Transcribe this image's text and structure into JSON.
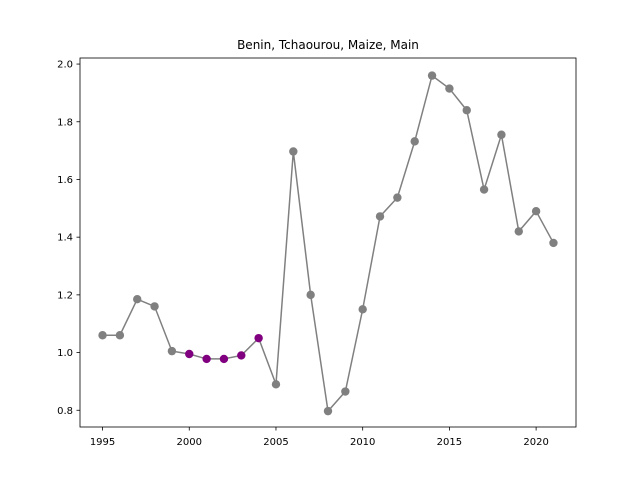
{
  "chart_data": {
    "type": "line",
    "title": "Benin, Tchaourou, Maize, Main",
    "xlabel": "",
    "ylabel": "",
    "xlim": [
      1993.7,
      2022.3
    ],
    "ylim": [
      0.742,
      2.021
    ],
    "x_ticks": [
      1995,
      2000,
      2005,
      2010,
      2015,
      2020
    ],
    "y_ticks": [
      0.8,
      1.0,
      1.2,
      1.4,
      1.6,
      1.8,
      2.0
    ],
    "y_tick_labels": [
      "0.8",
      "1.0",
      "1.2",
      "1.4",
      "1.6",
      "1.8",
      "2.0"
    ],
    "grid": false,
    "line_color": "#808080",
    "highlight_color": "#800080",
    "series": [
      {
        "x": [
          1995,
          1996,
          1997,
          1998,
          1999,
          2000,
          2001,
          2002,
          2003,
          2004,
          2005,
          2006,
          2007,
          2008,
          2009,
          2010,
          2011,
          2012,
          2013,
          2014,
          2015,
          2016,
          2017,
          2018,
          2019,
          2020,
          2021
        ],
        "y": [
          1.06,
          1.06,
          1.185,
          1.16,
          1.005,
          0.995,
          0.978,
          0.978,
          0.99,
          1.05,
          0.89,
          1.697,
          1.2,
          0.797,
          0.865,
          1.15,
          1.472,
          1.537,
          1.732,
          1.96,
          1.915,
          1.84,
          1.565,
          1.755,
          1.42,
          1.49,
          1.38
        ],
        "highlighted": [
          false,
          false,
          false,
          false,
          false,
          true,
          true,
          true,
          true,
          true,
          false,
          false,
          false,
          false,
          false,
          false,
          false,
          false,
          false,
          false,
          false,
          false,
          false,
          false,
          false,
          false,
          false
        ]
      }
    ]
  }
}
